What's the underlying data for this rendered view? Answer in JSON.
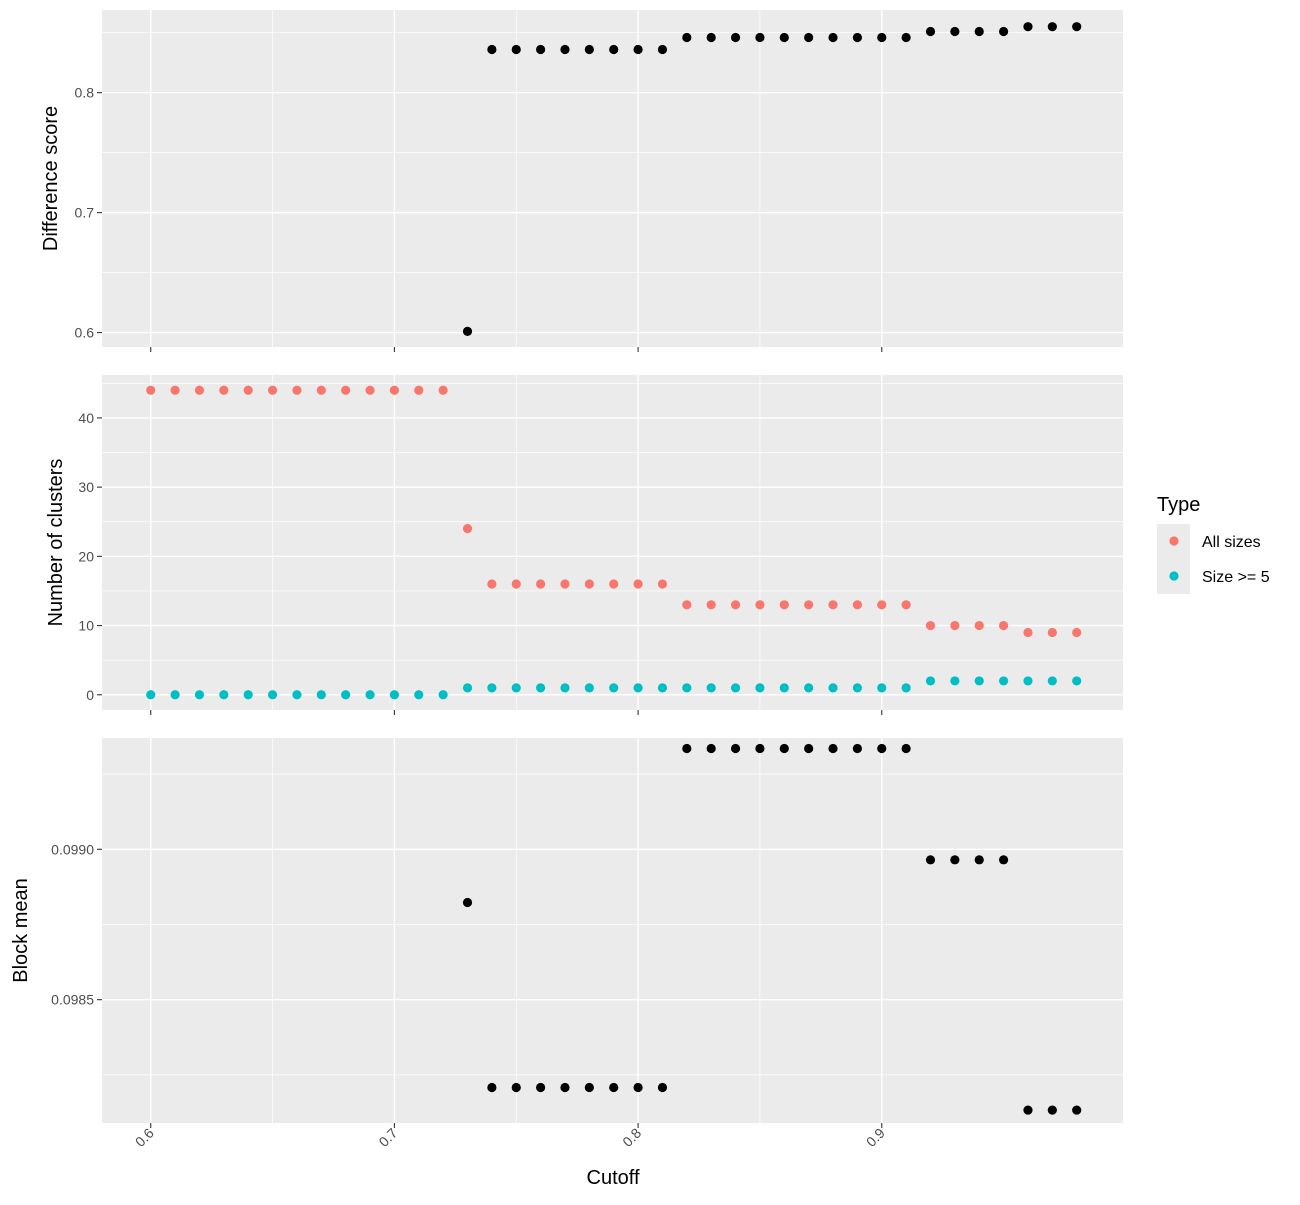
{
  "chart_data": {
    "type": "scatter",
    "xlabel": "Cutoff",
    "x_ticks": [
      "0.6",
      "0.7",
      "0.8",
      "0.9"
    ],
    "xlim": [
      0.58,
      0.999
    ],
    "colors": {
      "panel_bg": "#ebebeb",
      "grid": "#ffffff",
      "single": "#000000"
    },
    "legend": {
      "title": "Type",
      "position": "right",
      "entries": [
        {
          "label": "All sizes",
          "color": "#F8766D"
        },
        {
          "label": "Size >= 5",
          "color": "#00BFC4"
        }
      ]
    },
    "panels": [
      {
        "ylabel": "Difference score",
        "ylim": [
          0.588,
          0.8689
        ],
        "y_ticks": [
          0.6,
          0.7,
          0.8
        ],
        "y_tick_labels": [
          "0.6",
          "0.7",
          "0.8"
        ],
        "y_minor": [
          0.65,
          0.75,
          0.85
        ],
        "series": [
          {
            "color": "#000000",
            "x": [
              0.73,
              0.74,
              0.75,
              0.76,
              0.77,
              0.78,
              0.79,
              0.8,
              0.81,
              0.82,
              0.83,
              0.84,
              0.85,
              0.86,
              0.87,
              0.88,
              0.89,
              0.9,
              0.91,
              0.92,
              0.93,
              0.94,
              0.95,
              0.96,
              0.97,
              0.98
            ],
            "y": [
              0.601,
              0.836,
              0.836,
              0.836,
              0.836,
              0.836,
              0.836,
              0.836,
              0.836,
              0.846,
              0.846,
              0.846,
              0.846,
              0.846,
              0.846,
              0.846,
              0.846,
              0.846,
              0.846,
              0.851,
              0.851,
              0.851,
              0.851,
              0.855,
              0.855,
              0.855
            ]
          }
        ]
      },
      {
        "ylabel": "Number of clusters",
        "ylim": [
          -2.2,
          46.2
        ],
        "y_ticks": [
          0,
          10,
          20,
          30,
          40
        ],
        "y_tick_labels": [
          "0",
          "10",
          "20",
          "30",
          "40"
        ],
        "y_minor": [
          5,
          15,
          25,
          35,
          45
        ],
        "series": [
          {
            "name": "All sizes",
            "color": "#F8766D",
            "x": [
              0.6,
              0.61,
              0.62,
              0.63,
              0.64,
              0.65,
              0.66,
              0.67,
              0.68,
              0.69,
              0.7,
              0.71,
              0.72,
              0.73,
              0.74,
              0.75,
              0.76,
              0.77,
              0.78,
              0.79,
              0.8,
              0.81,
              0.82,
              0.83,
              0.84,
              0.85,
              0.86,
              0.87,
              0.88,
              0.89,
              0.9,
              0.91,
              0.92,
              0.93,
              0.94,
              0.95,
              0.96,
              0.97,
              0.98
            ],
            "y": [
              44,
              44,
              44,
              44,
              44,
              44,
              44,
              44,
              44,
              44,
              44,
              44,
              44,
              24,
              16,
              16,
              16,
              16,
              16,
              16,
              16,
              16,
              13,
              13,
              13,
              13,
              13,
              13,
              13,
              13,
              13,
              13,
              10,
              10,
              10,
              10,
              9,
              9,
              9
            ]
          },
          {
            "name": "Size >= 5",
            "color": "#00BFC4",
            "x": [
              0.6,
              0.61,
              0.62,
              0.63,
              0.64,
              0.65,
              0.66,
              0.67,
              0.68,
              0.69,
              0.7,
              0.71,
              0.72,
              0.73,
              0.74,
              0.75,
              0.76,
              0.77,
              0.78,
              0.79,
              0.8,
              0.81,
              0.82,
              0.83,
              0.84,
              0.85,
              0.86,
              0.87,
              0.88,
              0.89,
              0.9,
              0.91,
              0.92,
              0.93,
              0.94,
              0.95,
              0.96,
              0.97,
              0.98
            ],
            "y": [
              0,
              0,
              0,
              0,
              0,
              0,
              0,
              0,
              0,
              0,
              0,
              0,
              0,
              1,
              1,
              1,
              1,
              1,
              1,
              1,
              1,
              1,
              1,
              1,
              1,
              1,
              1,
              1,
              1,
              1,
              1,
              1,
              2,
              2,
              2,
              2,
              2,
              2,
              2
            ]
          }
        ]
      },
      {
        "ylabel": "Block mean",
        "ylim": [
          0.09809,
          0.09937
        ],
        "y_ticks": [
          0.0985,
          0.099
        ],
        "y_tick_labels": [
          "0.0985",
          "0.0990"
        ],
        "y_minor": [
          0.09825,
          0.09875,
          0.09925
        ],
        "series": [
          {
            "color": "#000000",
            "x": [
              0.73,
              0.74,
              0.75,
              0.76,
              0.77,
              0.78,
              0.79,
              0.8,
              0.81,
              0.82,
              0.83,
              0.84,
              0.85,
              0.86,
              0.87,
              0.88,
              0.89,
              0.9,
              0.91,
              0.92,
              0.93,
              0.94,
              0.95,
              0.96,
              0.97,
              0.98
            ],
            "y": [
              0.098823,
              0.098208,
              0.098208,
              0.098208,
              0.098208,
              0.098208,
              0.098208,
              0.098208,
              0.098208,
              0.099335,
              0.099335,
              0.099335,
              0.099335,
              0.099335,
              0.099335,
              0.099335,
              0.099335,
              0.099335,
              0.099335,
              0.098965,
              0.098965,
              0.098965,
              0.098965,
              0.098133,
              0.098133,
              0.098133
            ]
          }
        ]
      }
    ]
  }
}
